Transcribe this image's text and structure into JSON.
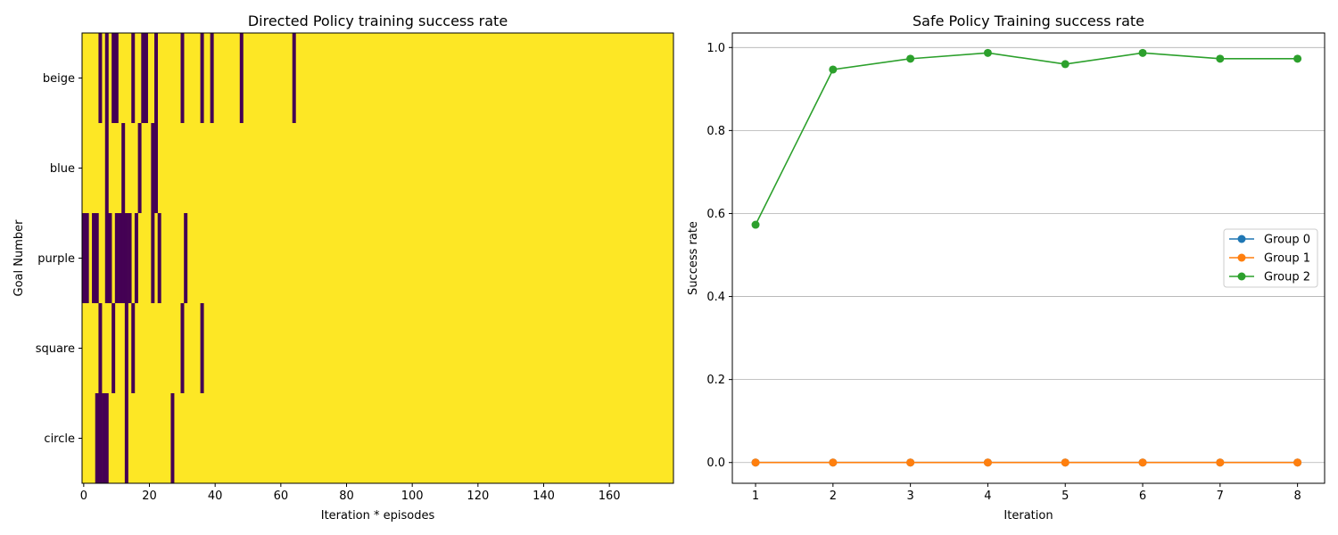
{
  "figure": {
    "left_title": "Directed Policy training success rate",
    "right_title": "Safe Policy Training success rate"
  },
  "chart_data": [
    {
      "type": "heatmap",
      "title": "Directed Policy training success rate",
      "xlabel": "Iteration * episodes",
      "ylabel": "Goal Number",
      "rows": [
        "beige",
        "blue",
        "purple",
        "square",
        "circle"
      ],
      "x_range": [
        0,
        180
      ],
      "x_ticks": [
        "0",
        "20",
        "40",
        "60",
        "80",
        "100",
        "120",
        "140",
        "160"
      ],
      "colormap": {
        "success": "#fde725",
        "failure": "#440154"
      },
      "default_value": 1,
      "failures": [
        {
          "row": "beige",
          "episodes": [
            5,
            7,
            9,
            10,
            15,
            18,
            19,
            22,
            30,
            36,
            39,
            48,
            64
          ]
        },
        {
          "row": "blue",
          "episodes": [
            7,
            12,
            17,
            21,
            22
          ]
        },
        {
          "row": "purple",
          "episodes": [
            0,
            1,
            3,
            4,
            7,
            8,
            10,
            11,
            12,
            13,
            14,
            16,
            21,
            23,
            31
          ]
        },
        {
          "row": "square",
          "episodes": [
            5,
            9,
            13,
            15,
            30,
            36
          ]
        },
        {
          "row": "circle",
          "episodes": [
            4,
            5,
            6,
            7,
            13,
            27
          ]
        }
      ]
    },
    {
      "type": "line",
      "title": "Safe Policy Training success rate",
      "xlabel": "Iteration",
      "ylabel": "Success rate",
      "x": [
        1,
        2,
        3,
        4,
        5,
        6,
        7,
        8
      ],
      "xlim": [
        0.7,
        8.35
      ],
      "ylim": [
        -0.05,
        1.035
      ],
      "y_ticks": [
        "0.0",
        "0.2",
        "0.4",
        "0.6",
        "0.8",
        "1.0"
      ],
      "grid": "horizontal",
      "legend_position": "center-right",
      "series": [
        {
          "name": "Group 0",
          "color": "#1f77b4",
          "values": [
            0,
            0,
            0,
            0,
            0,
            0,
            0,
            0
          ]
        },
        {
          "name": "Group 1",
          "color": "#ff7f0e",
          "values": [
            0,
            0,
            0,
            0,
            0,
            0,
            0,
            0
          ]
        },
        {
          "name": "Group 2",
          "color": "#2ca02c",
          "values": [
            0.573,
            0.947,
            0.973,
            0.987,
            0.96,
            0.987,
            0.973,
            0.973
          ]
        }
      ]
    }
  ]
}
